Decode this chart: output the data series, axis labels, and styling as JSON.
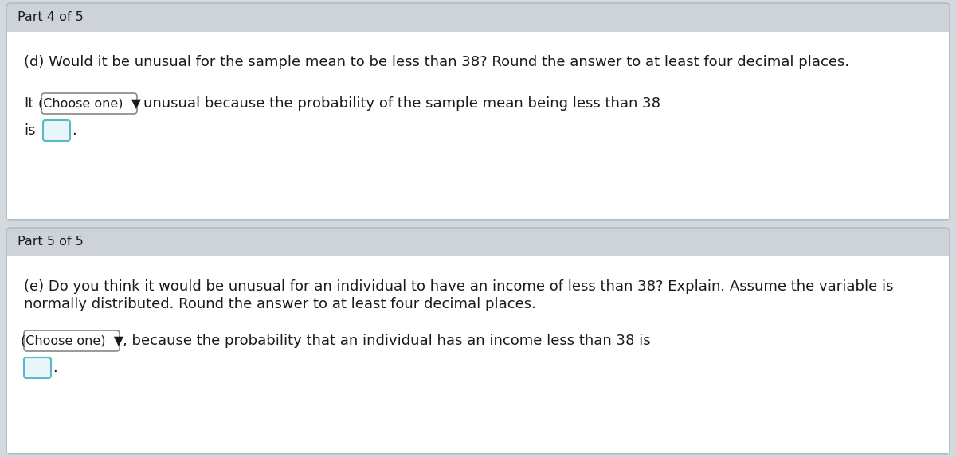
{
  "bg_color": "#d4d9de",
  "header_bg": "#cdd3d8",
  "white": "#ffffff",
  "border_gray": "#b0b8c0",
  "text_color": "#1a1a1a",
  "dropdown1_border": "#888888",
  "dropdown2_border": "#888888",
  "input_border": "#5bb8c8",
  "input_fill": "#e8f6fa",
  "part4_header": "Part 4 of 5",
  "part5_header": "Part 5 of 5",
  "part4_question": "(d) Would it be unusual for the sample mean to be less than 38? Round the answer to at least four decimal places.",
  "part4_line1_post": "unusual because the probability of the sample mean being less than 38",
  "part5_question_line1": "(e) Do you think it would be unusual for an individual to have an income of less than 38? Explain. Assume the variable is",
  "part5_question_line2": "normally distributed. Round the answer to at least four decimal places.",
  "part5_line_post": ", because the probability that an individual has an income less than 38 is",
  "dropdown_label": "(Choose one)  ▼",
  "font_size_header": 11.5,
  "font_size_text": 13.0,
  "font_size_dropdown": 11.5
}
